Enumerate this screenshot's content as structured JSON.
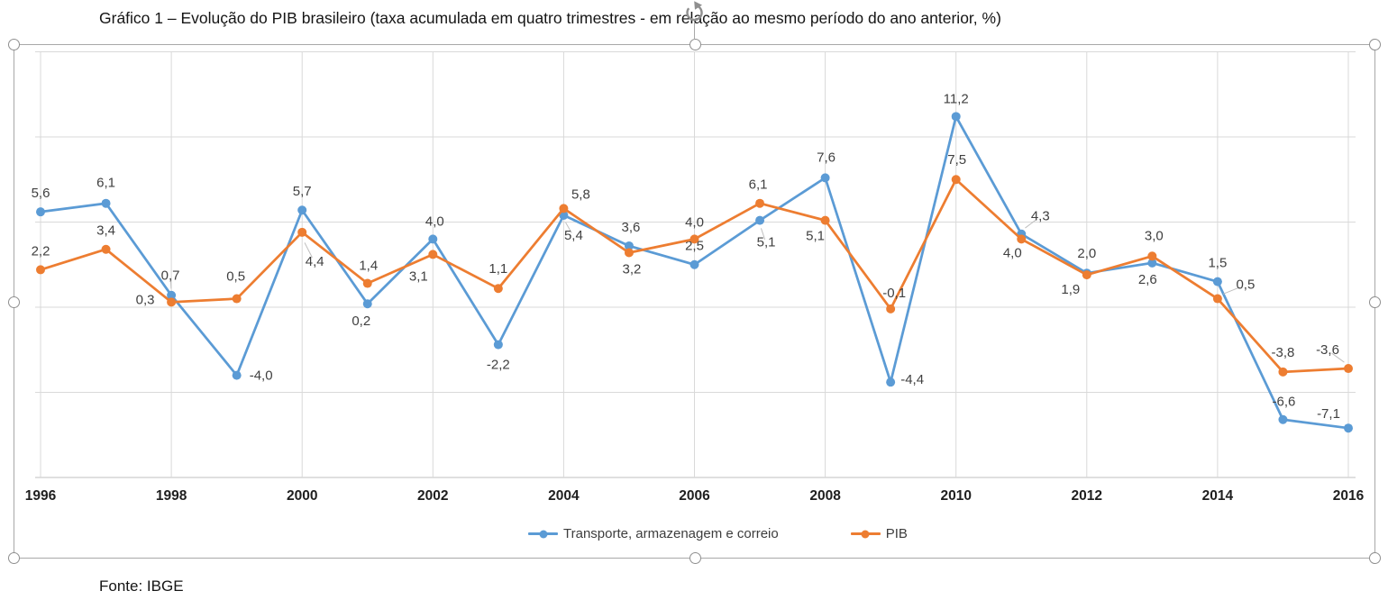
{
  "page": {
    "title": "Gráfico 1 – Evolução do PIB brasileiro (taxa acumulada em quatro trimestres - em relação ao mesmo período do ano anterior, %)",
    "source_note": "Fonte: IBGE"
  },
  "colors": {
    "series_blue": "#5B9BD5",
    "series_orange": "#ED7D31",
    "gridline": "#D9D9D9",
    "axis_line": "#BFBFBF",
    "data_label": "#404040",
    "tick_label": "#1f1f1f",
    "leader_line": "#BFBFBF",
    "selection_frame": "#a8a8a8",
    "handle_stroke": "#8f8f8f"
  },
  "chart_data": {
    "type": "line",
    "title": "Gráfico 1 – Evolução do PIB brasileiro (taxa acumulada em quatro trimestres - em relação ao mesmo período do ano anterior, %)",
    "x": [
      1996,
      1997,
      1998,
      1999,
      2000,
      2001,
      2002,
      2003,
      2004,
      2005,
      2006,
      2007,
      2008,
      2009,
      2010,
      2011,
      2012,
      2013,
      2014,
      2015,
      2016
    ],
    "x_tick_labels": [
      "1996",
      "1998",
      "2000",
      "2002",
      "2004",
      "2006",
      "2008",
      "2010",
      "2012",
      "2014",
      "2016"
    ],
    "ylim": [
      -10,
      15
    ],
    "gridline_values": [
      15,
      10,
      5,
      0,
      -5,
      -10
    ],
    "grid": true,
    "legend_position": "bottom",
    "series": [
      {
        "name": "Transporte, armazenagem e correio",
        "color": "#5B9BD5",
        "values": [
          5.6,
          6.1,
          0.7,
          -4.0,
          5.7,
          0.2,
          4.0,
          -2.2,
          5.4,
          3.6,
          2.5,
          5.1,
          7.6,
          -4.4,
          11.2,
          4.3,
          2.0,
          2.6,
          1.5,
          -6.6,
          -7.1
        ],
        "labels": [
          "5,6",
          "6,1",
          "0,7",
          "-4,0",
          "5,7",
          "0,2",
          "4,0",
          "-2,2",
          "5,4",
          "3,6",
          "2,5",
          "5,1",
          "7,6",
          "-4,4",
          "11,2",
          "4,3",
          "2,0",
          "2,6",
          "1,5",
          "-6,6",
          "-7,1"
        ],
        "label_hints": [
          [
            0,
            -20
          ],
          [
            0,
            -22
          ],
          [
            -1,
            -21,
            1
          ],
          [
            27,
            1
          ],
          [
            0,
            -20
          ],
          [
            -7,
            20
          ],
          [
            2,
            -19
          ],
          [
            0,
            23
          ],
          [
            11,
            23,
            1
          ],
          [
            2,
            -20
          ],
          [
            0,
            -20
          ],
          [
            7,
            25,
            1
          ],
          [
            1,
            -22
          ],
          [
            24,
            -2
          ],
          [
            0,
            -19
          ],
          [
            21,
            -19,
            1
          ],
          [
            0,
            -21
          ],
          [
            -5,
            19
          ],
          [
            0,
            -20
          ],
          [
            1,
            -19
          ],
          [
            -22,
            -15
          ]
        ]
      },
      {
        "name": "PIB",
        "color": "#ED7D31",
        "values": [
          2.2,
          3.4,
          0.3,
          0.5,
          4.4,
          1.4,
          3.1,
          1.1,
          5.8,
          3.2,
          4.0,
          6.1,
          5.1,
          -0.1,
          7.5,
          4.0,
          1.9,
          3.0,
          0.5,
          -3.8,
          -3.6
        ],
        "labels": [
          "2,2",
          "3,4",
          "0,3",
          "0,5",
          "4,4",
          "1,4",
          "3,1",
          "1,1",
          "5,8",
          "3,2",
          "4,0",
          "6,1",
          "5,1",
          "-0,1",
          "7,5",
          "4,0",
          "1,9",
          "3,0",
          "0,5",
          "-3,8",
          "-3,6"
        ],
        "label_hints": [
          [
            0,
            -20
          ],
          [
            0,
            -20
          ],
          [
            -29,
            -2
          ],
          [
            -1,
            -24
          ],
          [
            14,
            33,
            1
          ],
          [
            1,
            -19
          ],
          [
            -16,
            25
          ],
          [
            0,
            -21
          ],
          [
            19,
            -15
          ],
          [
            3,
            19
          ],
          [
            0,
            -18
          ],
          [
            -2,
            -20
          ],
          [
            -11,
            18
          ],
          [
            4,
            -17
          ],
          [
            1,
            -21
          ],
          [
            -10,
            16
          ],
          [
            -18,
            17
          ],
          [
            2,
            -22
          ],
          [
            31,
            -15,
            1
          ],
          [
            0,
            -21
          ],
          [
            -23,
            -20,
            1
          ]
        ]
      }
    ]
  }
}
